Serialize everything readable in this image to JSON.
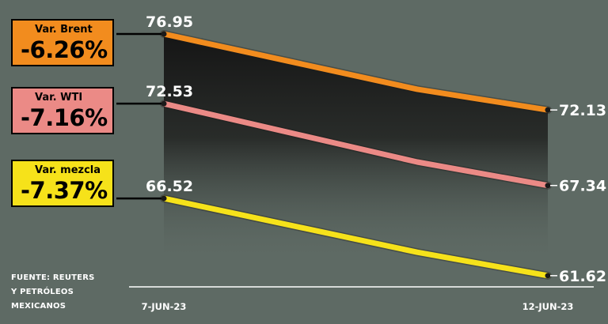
{
  "chart_data": {
    "type": "line",
    "x": [
      "7-JUN-23",
      "12-JUN-23"
    ],
    "series": [
      {
        "name": "Var. Brent",
        "change_label": "-6.26%",
        "color": "#f28c1e",
        "values": [
          76.95,
          72.13
        ],
        "start_label": "76.95",
        "end_label": "72.13"
      },
      {
        "name": "Var. WTI",
        "change_label": "-7.16%",
        "color": "#eb8a86",
        "values": [
          72.53,
          67.34
        ],
        "start_label": "72.53",
        "end_label": "67.34"
      },
      {
        "name": "Var. mezcla",
        "change_label": "-7.37%",
        "color": "#f6e21a",
        "values": [
          66.52,
          61.62
        ],
        "start_label": "66.52",
        "end_label": "61.62"
      }
    ],
    "grid": false,
    "legend": "left"
  },
  "source": [
    "FUENTE: REUTERS",
    "Y PETRÓLEOS",
    "MEXICANOS"
  ],
  "colors": {
    "background": "#5e6a64",
    "text": "#ffffff",
    "axis": "#ffffff"
  }
}
